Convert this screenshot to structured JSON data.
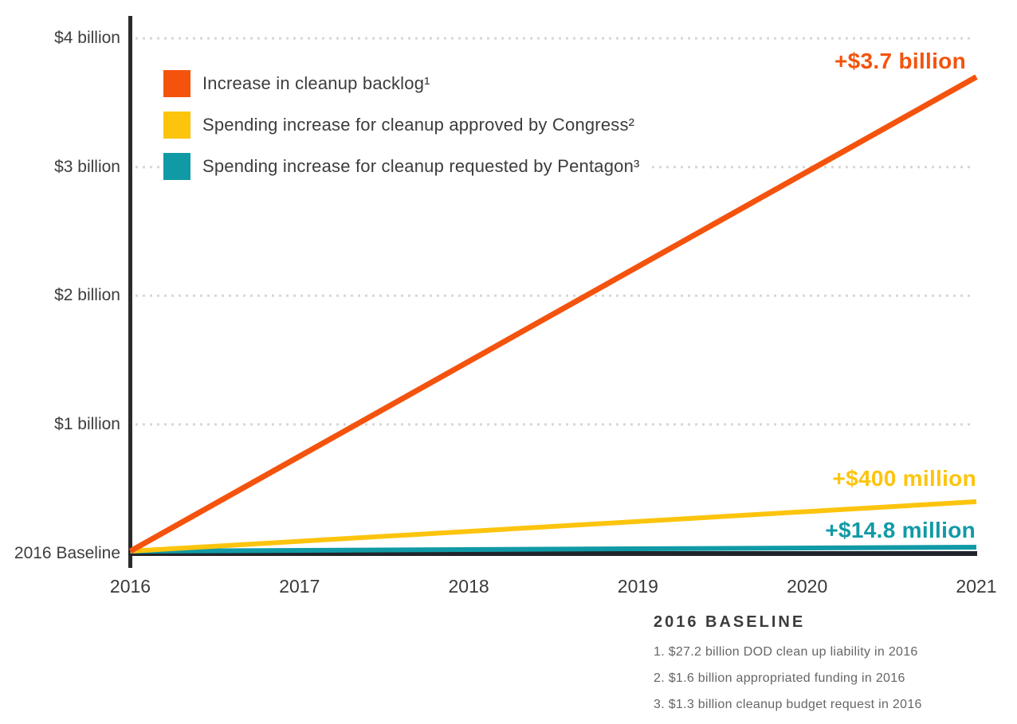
{
  "chart_data": {
    "type": "line",
    "title": "",
    "units": "increase vs 2016 baseline (USD)",
    "x": [
      2016,
      2017,
      2018,
      2019,
      2020,
      2021
    ],
    "x_labels": [
      "2016",
      "2017",
      "2018",
      "2019",
      "2020",
      "2021"
    ],
    "ylim_billion": [
      0,
      4.2
    ],
    "ytick_labels": [
      "$4 billion",
      "$3 billion",
      "$2 billion",
      "$1 billion",
      "2016 Baseline"
    ],
    "ytick_values_billion": [
      4,
      3,
      2,
      1,
      0
    ],
    "grid": "horizontal dashed gridlines on",
    "legend_position": "top-left inside plot area",
    "series": [
      {
        "name": "Increase in cleanup backlog¹",
        "color": "#F4530D",
        "start_year": 2016,
        "end_year": 2021,
        "start_billion": 0,
        "end_billion": 3.7,
        "end_label": "+$3.7 billion"
      },
      {
        "name": "Spending increase for cleanup approved by Congress²",
        "color": "#FCC40D",
        "start_year": 2016,
        "end_year": 2021,
        "start_billion": 0,
        "end_billion": 0.4,
        "end_label": "+$400 million"
      },
      {
        "name": "Spending increase for cleanup requested by Pentagon³",
        "color": "#109AA6",
        "start_year": 2016,
        "end_year": 2021,
        "start_billion": 0,
        "end_billion": 0.0148,
        "end_label": "+$14.8 million"
      }
    ]
  },
  "footer": {
    "title": "2016 BASELINE",
    "notes": [
      "1. $27.2 billion DOD clean up liability in 2016",
      "2. $1.6 billion appropriated funding in 2016",
      "3. $1.3 billion cleanup budget request in 2016"
    ]
  },
  "colors": {
    "background": "#FFFFFF",
    "axis": "#2B2B2B",
    "baseline": "#21242A",
    "gridline": "#D7D7D7",
    "label_text": "#3D3D3D",
    "footnote_text": "#666666"
  }
}
